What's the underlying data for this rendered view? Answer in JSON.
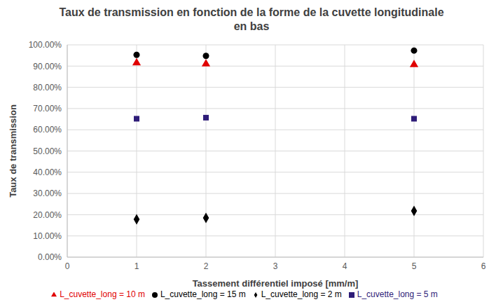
{
  "chart_data": {
    "type": "scatter",
    "title": "Taux de transmission en fonction de la forme de la cuvette longitudinale en bas",
    "x_label": "Tassement différentiel imposé [mm/m]",
    "y_label": "Taux de transmission",
    "x": [
      1,
      2,
      5
    ],
    "series": [
      {
        "name": "L_cuvette_long = 2 m",
        "color": "#000000",
        "marker": "diamond",
        "values": [
          17.8,
          18.5,
          21.8
        ]
      },
      {
        "name": "L_cuvette_long = 5 m",
        "color": "#2e1c78",
        "marker": "square",
        "values": [
          65.2,
          65.7,
          65.2
        ]
      },
      {
        "name": "L_cuvette_long = 10 m",
        "color": "#e00000",
        "marker": "triangle",
        "values": [
          91.5,
          91.0,
          90.7
        ]
      },
      {
        "name": "L_cuvette_long = 15 m",
        "color": "#000000",
        "marker": "circle",
        "values": [
          95.3,
          94.8,
          97.3
        ]
      }
    ],
    "xlim": [
      0,
      6
    ],
    "xticks": [
      0,
      1,
      2,
      3,
      4,
      5,
      6
    ],
    "ylim": [
      0,
      100
    ],
    "yticks": [
      {
        "value": 0,
        "label": "0.00%"
      },
      {
        "value": 10,
        "label": "10.00%"
      },
      {
        "value": 20,
        "label": "20.00%"
      },
      {
        "value": 30,
        "label": "30.00%"
      },
      {
        "value": 40,
        "label": "40.00%"
      },
      {
        "value": 50,
        "label": "50.00%"
      },
      {
        "value": 60,
        "label": "60.00%"
      },
      {
        "value": 70,
        "label": "70.00%"
      },
      {
        "value": 80,
        "label": "80.00%"
      },
      {
        "value": 90,
        "label": "90.00%"
      },
      {
        "value": 100,
        "label": "100.00%"
      }
    ],
    "grid": true,
    "legend": "bottom"
  }
}
